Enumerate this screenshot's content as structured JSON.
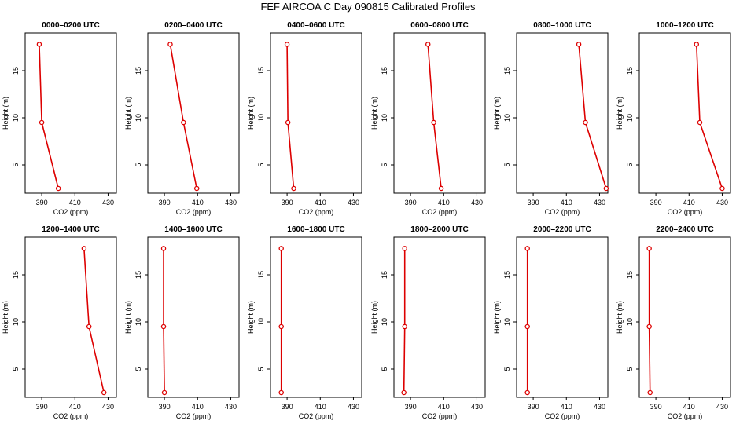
{
  "title": "FEF AIRCOA C  Day 090815  Calibrated Profiles",
  "colors": {
    "profile": "#dd0000",
    "axis": "#000000"
  },
  "chart_data": [
    {
      "type": "line",
      "title": "0000–0200 UTC",
      "xlabel": "CO2 (ppm)",
      "ylabel": "Height (m)",
      "xlim": [
        380,
        435
      ],
      "ylim": [
        2,
        19
      ],
      "xticks": [
        390,
        410,
        430
      ],
      "yticks": [
        5,
        10,
        15
      ],
      "points": [
        {
          "co2": 388.5,
          "height": 17.8
        },
        {
          "co2": 390.0,
          "height": 9.5
        },
        {
          "co2": 400.0,
          "height": 2.5
        }
      ]
    },
    {
      "type": "line",
      "title": "0200–0400 UTC",
      "xlabel": "CO2 (ppm)",
      "ylabel": "Height (m)",
      "xlim": [
        380,
        435
      ],
      "ylim": [
        2,
        19
      ],
      "xticks": [
        390,
        410,
        430
      ],
      "yticks": [
        5,
        10,
        15
      ],
      "points": [
        {
          "co2": 393.5,
          "height": 17.8
        },
        {
          "co2": 401.5,
          "height": 9.5
        },
        {
          "co2": 409.5,
          "height": 2.5
        }
      ]
    },
    {
      "type": "line",
      "title": "0400–0600 UTC",
      "xlabel": "CO2 (ppm)",
      "ylabel": "Height (m)",
      "xlim": [
        380,
        435
      ],
      "ylim": [
        2,
        19
      ],
      "xticks": [
        390,
        410,
        430
      ],
      "yticks": [
        5,
        10,
        15
      ],
      "points": [
        {
          "co2": 390.0,
          "height": 17.8
        },
        {
          "co2": 390.5,
          "height": 9.5
        },
        {
          "co2": 394.0,
          "height": 2.5
        }
      ]
    },
    {
      "type": "line",
      "title": "0600–0800 UTC",
      "xlabel": "CO2 (ppm)",
      "ylabel": "Height (m)",
      "xlim": [
        380,
        435
      ],
      "ylim": [
        2,
        19
      ],
      "xticks": [
        390,
        410,
        430
      ],
      "yticks": [
        5,
        10,
        15
      ],
      "points": [
        {
          "co2": 400.5,
          "height": 17.8
        },
        {
          "co2": 404.0,
          "height": 9.5
        },
        {
          "co2": 408.5,
          "height": 2.5
        }
      ]
    },
    {
      "type": "line",
      "title": "0800–1000 UTC",
      "xlabel": "CO2 (ppm)",
      "ylabel": "Height (m)",
      "xlim": [
        380,
        435
      ],
      "ylim": [
        2,
        19
      ],
      "xticks": [
        390,
        410,
        430
      ],
      "yticks": [
        5,
        10,
        15
      ],
      "points": [
        {
          "co2": 417.5,
          "height": 17.8
        },
        {
          "co2": 421.5,
          "height": 9.5
        },
        {
          "co2": 434.0,
          "height": 2.5
        }
      ]
    },
    {
      "type": "line",
      "title": "1000–1200 UTC",
      "xlabel": "CO2 (ppm)",
      "ylabel": "Height (m)",
      "xlim": [
        380,
        435
      ],
      "ylim": [
        2,
        19
      ],
      "xticks": [
        390,
        410,
        430
      ],
      "yticks": [
        5,
        10,
        15
      ],
      "points": [
        {
          "co2": 414.5,
          "height": 17.8
        },
        {
          "co2": 416.5,
          "height": 9.5
        },
        {
          "co2": 430.0,
          "height": 2.5
        }
      ]
    },
    {
      "type": "line",
      "title": "1200–1400 UTC",
      "xlabel": "CO2 (ppm)",
      "ylabel": "Height (m)",
      "xlim": [
        380,
        435
      ],
      "ylim": [
        2,
        19
      ],
      "xticks": [
        390,
        410,
        430
      ],
      "yticks": [
        5,
        10,
        15
      ],
      "points": [
        {
          "co2": 415.5,
          "height": 17.8
        },
        {
          "co2": 418.5,
          "height": 9.5
        },
        {
          "co2": 427.5,
          "height": 2.5
        }
      ]
    },
    {
      "type": "line",
      "title": "1400–1600 UTC",
      "xlabel": "CO2 (ppm)",
      "ylabel": "Height (m)",
      "xlim": [
        380,
        435
      ],
      "ylim": [
        2,
        19
      ],
      "xticks": [
        390,
        410,
        430
      ],
      "yticks": [
        5,
        10,
        15
      ],
      "points": [
        {
          "co2": 389.5,
          "height": 17.8
        },
        {
          "co2": 389.5,
          "height": 9.5
        },
        {
          "co2": 390.0,
          "height": 2.5
        }
      ]
    },
    {
      "type": "line",
      "title": "1600–1800 UTC",
      "xlabel": "CO2 (ppm)",
      "ylabel": "Height (m)",
      "xlim": [
        380,
        435
      ],
      "ylim": [
        2,
        19
      ],
      "xticks": [
        390,
        410,
        430
      ],
      "yticks": [
        5,
        10,
        15
      ],
      "points": [
        {
          "co2": 386.5,
          "height": 17.8
        },
        {
          "co2": 386.5,
          "height": 9.5
        },
        {
          "co2": 386.5,
          "height": 2.5
        }
      ]
    },
    {
      "type": "line",
      "title": "1800–2000 UTC",
      "xlabel": "CO2 (ppm)",
      "ylabel": "Height (m)",
      "xlim": [
        380,
        435
      ],
      "ylim": [
        2,
        19
      ],
      "xticks": [
        390,
        410,
        430
      ],
      "yticks": [
        5,
        10,
        15
      ],
      "points": [
        {
          "co2": 386.5,
          "height": 17.8
        },
        {
          "co2": 386.5,
          "height": 9.5
        },
        {
          "co2": 386.0,
          "height": 2.5
        }
      ]
    },
    {
      "type": "line",
      "title": "2000–2200 UTC",
      "xlabel": "CO2 (ppm)",
      "ylabel": "Height (m)",
      "xlim": [
        380,
        435
      ],
      "ylim": [
        2,
        19
      ],
      "xticks": [
        390,
        410,
        430
      ],
      "yticks": [
        5,
        10,
        15
      ],
      "points": [
        {
          "co2": 386.5,
          "height": 17.8
        },
        {
          "co2": 386.5,
          "height": 9.5
        },
        {
          "co2": 386.5,
          "height": 2.5
        }
      ]
    },
    {
      "type": "line",
      "title": "2200–2400 UTC",
      "xlabel": "CO2 (ppm)",
      "ylabel": "Height (m)",
      "xlim": [
        380,
        435
      ],
      "ylim": [
        2,
        19
      ],
      "xticks": [
        390,
        410,
        430
      ],
      "yticks": [
        5,
        10,
        15
      ],
      "points": [
        {
          "co2": 386.0,
          "height": 17.8
        },
        {
          "co2": 386.0,
          "height": 9.5
        },
        {
          "co2": 386.5,
          "height": 2.5
        }
      ]
    }
  ]
}
